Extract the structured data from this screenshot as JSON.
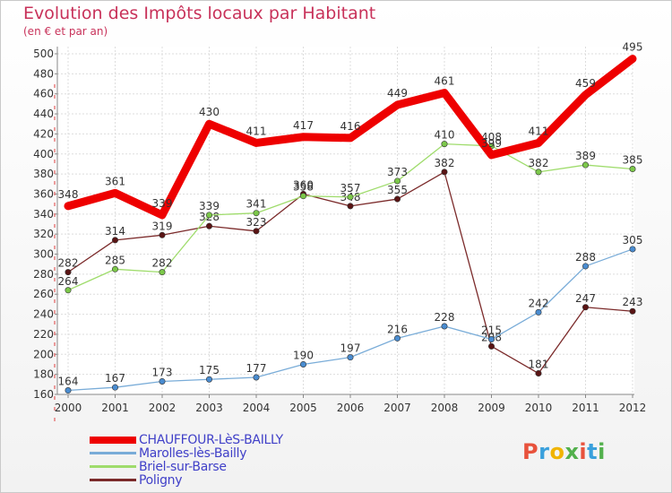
{
  "header": {
    "title": "Evolution des Impôts locaux par Habitant",
    "subtitle": "(en € et par an)"
  },
  "logo": {
    "text": "Proxiti",
    "colors": [
      "#e8523c",
      "#3aa0dc",
      "#f0b400",
      "#52b04c",
      "#e8523c",
      "#3aa0dc",
      "#52b04c"
    ]
  },
  "chart_data": {
    "type": "line",
    "title": "Evolution des Impôts locaux par Habitant",
    "subtitle": "(en € et par an)",
    "xlabel": "",
    "ylabel": "",
    "x": [
      "2000",
      "2001",
      "2002",
      "2003",
      "2004",
      "2005",
      "2006",
      "2007",
      "2008",
      "2009",
      "2010",
      "2011",
      "2012"
    ],
    "ylim": [
      160,
      500
    ],
    "yticks": [
      160,
      180,
      200,
      220,
      240,
      260,
      280,
      300,
      320,
      340,
      360,
      380,
      400,
      420,
      440,
      460,
      480,
      500
    ],
    "grid": true,
    "legend_position": "bottom-left",
    "series": [
      {
        "name": "Poligny",
        "color": "#7b2a2a",
        "marker": "#5a1414",
        "width": 1.3,
        "values": [
          282,
          314,
          319,
          328,
          323,
          360,
          348,
          355,
          382,
          208,
          181,
          247,
          243
        ],
        "labels": [
          "282",
          "314",
          "319",
          "328",
          "323",
          "360",
          "348",
          "355",
          "382",
          "208",
          "181",
          "247",
          "243"
        ]
      },
      {
        "name": "Briel-sur-Barse",
        "color": "#9fdc6c",
        "marker": "#7cc84a",
        "width": 1.3,
        "values": [
          264,
          285,
          282,
          339,
          341,
          358,
          357,
          373,
          410,
          408,
          382,
          389,
          385
        ],
        "labels": [
          "264",
          "285",
          "282",
          "339",
          "341",
          "358",
          "357",
          "373",
          "410",
          "408",
          "382",
          "389",
          "385"
        ]
      },
      {
        "name": "Marolles-lès-Bailly",
        "color": "#79acd8",
        "marker": "#4a8cd0",
        "width": 1.3,
        "values": [
          164,
          167,
          173,
          175,
          177,
          190,
          197,
          216,
          228,
          215,
          242,
          288,
          305
        ],
        "labels": [
          "164",
          "167",
          "173",
          "175",
          "177",
          "190",
          "197",
          "216",
          "228",
          "215",
          "242",
          "288",
          "305"
        ]
      },
      {
        "name": "CHAUFFOUR-LèS-BAILLY",
        "color": "#ee0000",
        "marker": "#ee0000",
        "width": 9,
        "values": [
          348,
          361,
          339,
          430,
          411,
          417,
          416,
          449,
          461,
          399,
          411,
          459,
          495
        ],
        "labels": [
          "348",
          "361",
          "339",
          "430",
          "411",
          "417",
          "416",
          "449",
          "461",
          "399",
          "411",
          "459",
          "495"
        ]
      }
    ]
  },
  "legend": {
    "items": [
      {
        "label": "CHAUFFOUR-LèS-BAILLY",
        "color": "#ee0000",
        "thick": true
      },
      {
        "label": "Marolles-lès-Bailly",
        "color": "#79acd8",
        "thick": false
      },
      {
        "label": "Briel-sur-Barse",
        "color": "#9fdc6c",
        "thick": false
      },
      {
        "label": "Poligny",
        "color": "#7b2a2a",
        "thick": false
      }
    ]
  }
}
